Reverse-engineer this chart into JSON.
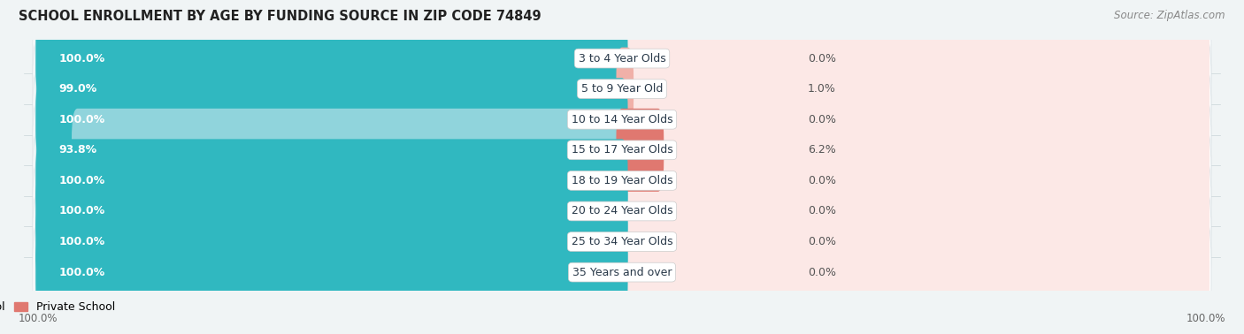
{
  "title": "SCHOOL ENROLLMENT BY AGE BY FUNDING SOURCE IN ZIP CODE 74849",
  "source": "Source: ZipAtlas.com",
  "categories": [
    "3 to 4 Year Olds",
    "5 to 9 Year Old",
    "10 to 14 Year Olds",
    "15 to 17 Year Olds",
    "18 to 19 Year Olds",
    "20 to 24 Year Olds",
    "25 to 34 Year Olds",
    "35 Years and over"
  ],
  "public_values": [
    100.0,
    99.0,
    100.0,
    93.8,
    100.0,
    100.0,
    100.0,
    100.0
  ],
  "private_values": [
    0.0,
    1.0,
    0.0,
    6.2,
    0.0,
    0.0,
    0.0,
    0.0
  ],
  "public_color": "#30b8c0",
  "public_color_light": "#90d4dc",
  "private_color": "#e07870",
  "private_color_light": "#f0b0a8",
  "private_bg_color": "#fce8e6",
  "public_bg_color": "#dff0f2",
  "row_bg_color": "#f0f4f5",
  "row_border_color": "#d8e0e4",
  "bg_color": "#f0f4f5",
  "title_fontsize": 10.5,
  "source_fontsize": 8.5,
  "label_fontsize": 9,
  "value_fontsize": 9,
  "axis_label_left": "100.0%",
  "axis_label_right": "100.0%"
}
